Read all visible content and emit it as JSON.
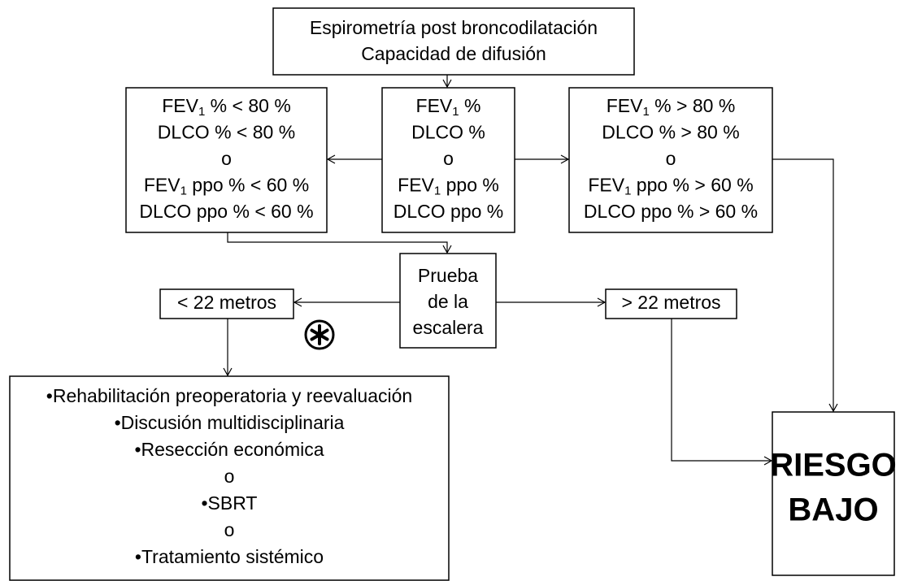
{
  "nodes": [
    {
      "lines": [
        "Espirometría post broncodilatación",
        "Capacidad de difusión"
      ]
    },
    {
      "lines": [
        {
          "pre": "FEV",
          "sub": "1",
          "post": " % < 80 %"
        },
        "DLCO % < 80 %",
        "o",
        {
          "pre": "FEV",
          "sub": "1",
          "post": " ppo % < 60 %"
        },
        "DLCO ppo % < 60 %"
      ]
    },
    {
      "lines": [
        {
          "pre": "FEV",
          "sub": "1",
          "post": " %"
        },
        "DLCO %",
        "o",
        {
          "pre": "FEV",
          "sub": "1",
          "post": " ppo %"
        },
        "DLCO ppo %"
      ]
    },
    {
      "lines": [
        {
          "pre": "FEV",
          "sub": "1",
          "post": " % > 80 %"
        },
        "DLCO % > 80 %",
        "o",
        {
          "pre": "FEV",
          "sub": "1",
          "post": " ppo % > 60 %"
        },
        "DLCO ppo % > 60 %"
      ]
    },
    {
      "lines": [
        "Prueba",
        "de la",
        "escalera"
      ]
    },
    {
      "lines": [
        "< 22 metros"
      ]
    },
    {
      "lines": [
        "> 22 metros"
      ]
    },
    {
      "lines": [
        "•Rehabilitación preoperatoria y reevaluación",
        "•Discusión multidisciplinaria",
        "•Resección económica",
        "o",
        "•SBRT",
        "o",
        "•Tratamiento sistémico"
      ]
    },
    {
      "lines": [
        "RIESGO",
        "BAJO"
      ]
    }
  ]
}
